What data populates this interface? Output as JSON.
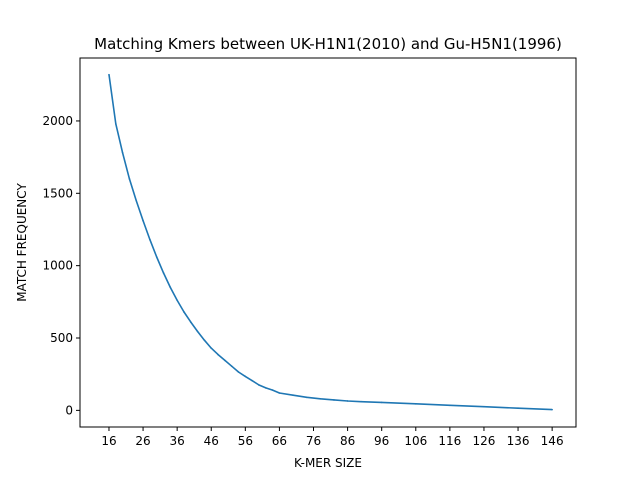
{
  "chart_data": {
    "type": "line",
    "title": "Matching Kmers between UK-H1N1(2010) and Gu-H5N1(1996)",
    "xlabel": "K-MER SIZE",
    "ylabel": "MATCH FREQUENCY",
    "xlim": [
      7.5,
      153.0
    ],
    "ylim": [
      -115,
      2435
    ],
    "xticks": [
      16,
      26,
      36,
      46,
      56,
      66,
      76,
      86,
      96,
      106,
      116,
      126,
      136,
      146
    ],
    "yticks": [
      0,
      500,
      1000,
      1500,
      2000
    ],
    "grid": false,
    "legend": "none",
    "series": [
      {
        "color": "#1f77b4",
        "x": [
          16,
          18,
          20,
          22,
          24,
          26,
          28,
          30,
          32,
          34,
          36,
          38,
          40,
          42,
          44,
          46,
          48,
          50,
          52,
          54,
          56,
          58,
          60,
          62,
          64,
          66,
          70,
          74,
          78,
          82,
          86,
          90,
          96,
          106,
          116,
          126,
          136,
          146
        ],
        "y": [
          2320,
          1980,
          1780,
          1600,
          1450,
          1310,
          1180,
          1060,
          950,
          850,
          760,
          680,
          610,
          545,
          485,
          430,
          385,
          345,
          305,
          265,
          235,
          205,
          175,
          155,
          140,
          120,
          105,
          90,
          80,
          72,
          65,
          60,
          55,
          45,
          35,
          25,
          15,
          5
        ]
      }
    ]
  }
}
